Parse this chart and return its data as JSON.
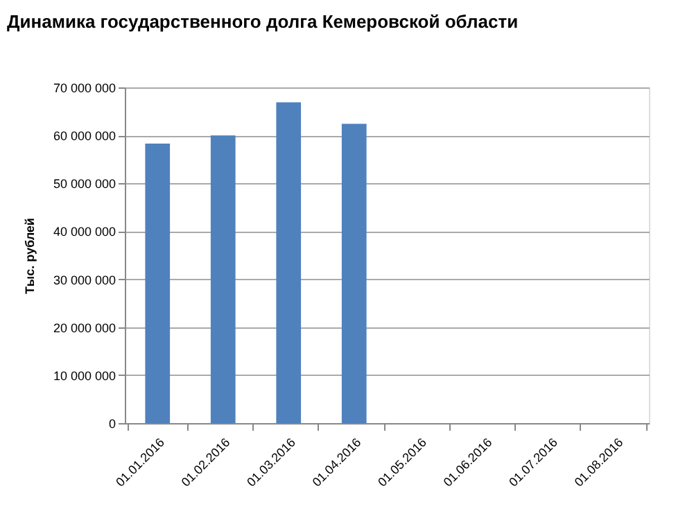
{
  "chart_data": {
    "type": "bar",
    "title": "Динамика государственного долга Кемеровской области",
    "ylabel": "Тыс. рублей",
    "categories": [
      "01.01.2016",
      "01.02.2016",
      "01.03.2016",
      "01.04.2016",
      "01.05.2016",
      "01.06.2016",
      "01.07.2016",
      "01.08.2016"
    ],
    "values": [
      58300000,
      60000000,
      66900000,
      62400000,
      null,
      null,
      null,
      null
    ],
    "color": "#4f81bd",
    "ylim": [
      0,
      70000000
    ],
    "yticks": [
      0,
      {
        "value": 10000000,
        "label": "10 000 000"
      },
      {
        "value": 20000000,
        "label": "20 000 000"
      },
      {
        "value": 30000000,
        "label": "30 000 000"
      },
      {
        "value": 40000000,
        "label": "40 000 000"
      },
      {
        "value": 50000000,
        "label": "50 000 000"
      },
      {
        "value": 60000000,
        "label": "60 000 000"
      },
      {
        "value": 70000000,
        "label": "70 000 000"
      }
    ],
    "grid": "y"
  }
}
